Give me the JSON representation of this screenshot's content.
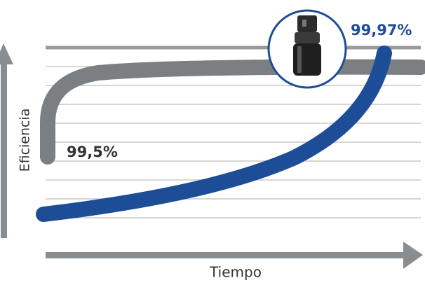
{
  "axes": {
    "y": "Eficiencia",
    "x": "Tiempo"
  },
  "labels": {
    "start": "99,5%",
    "end": "99,97%"
  }
}
